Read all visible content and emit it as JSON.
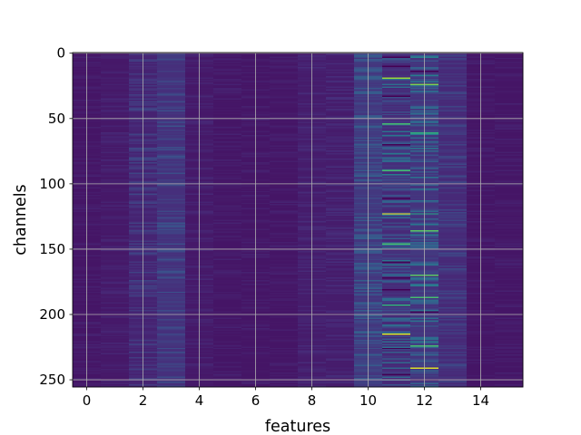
{
  "chart_data": {
    "type": "heatmap",
    "title": "",
    "xlabel": "features",
    "ylabel": "channels",
    "x_range": [
      -0.5,
      15.5
    ],
    "y_range": [
      255.5,
      -0.5
    ],
    "y_axis_inverted": true,
    "x_ticks": [
      0,
      2,
      4,
      6,
      8,
      10,
      12,
      14
    ],
    "y_ticks": [
      0,
      50,
      100,
      150,
      200,
      250
    ],
    "n_features": 16,
    "n_channels": 256,
    "grid": true,
    "colormap": "viridis",
    "legend": "none",
    "column_base_level": [
      0.06,
      0.07,
      0.1,
      0.14,
      0.07,
      0.06,
      0.06,
      0.06,
      0.08,
      0.08,
      0.16,
      0.12,
      0.15,
      0.12,
      0.06,
      0.06
    ],
    "column_variation": [
      0.04,
      0.05,
      0.12,
      0.12,
      0.05,
      0.04,
      0.04,
      0.04,
      0.05,
      0.06,
      0.16,
      0.3,
      0.28,
      0.1,
      0.04,
      0.04
    ],
    "bright_cells": [
      {
        "feature": 11,
        "channel": 123,
        "value": 1.0
      },
      {
        "feature": 11,
        "channel": 215,
        "value": 0.95
      },
      {
        "feature": 12,
        "channel": 241,
        "value": 0.95
      },
      {
        "feature": 11,
        "channel": 19,
        "value": 0.85
      },
      {
        "feature": 12,
        "channel": 24,
        "value": 0.8
      },
      {
        "feature": 11,
        "channel": 54,
        "value": 0.7
      },
      {
        "feature": 11,
        "channel": 90,
        "value": 0.7
      },
      {
        "feature": 11,
        "channel": 146,
        "value": 0.7
      },
      {
        "feature": 12,
        "channel": 136,
        "value": 0.75
      },
      {
        "feature": 12,
        "channel": 170,
        "value": 0.75
      },
      {
        "feature": 12,
        "channel": 187,
        "value": 0.7
      },
      {
        "feature": 12,
        "channel": 224,
        "value": 0.7
      },
      {
        "feature": 12,
        "channel": 61,
        "value": 0.65
      },
      {
        "feature": 11,
        "channel": 193,
        "value": 0.65
      },
      {
        "feature": 12,
        "channel": 123,
        "value": 0.6
      }
    ],
    "dark_cells": [
      {
        "feature": 11,
        "channel": 3
      },
      {
        "feature": 11,
        "channel": 10
      },
      {
        "feature": 11,
        "channel": 33
      },
      {
        "feature": 11,
        "channel": 70
      },
      {
        "feature": 11,
        "channel": 111
      },
      {
        "feature": 11,
        "channel": 160
      },
      {
        "feature": 11,
        "channel": 172
      },
      {
        "feature": 11,
        "channel": 181
      },
      {
        "feature": 11,
        "channel": 226
      },
      {
        "feature": 11,
        "channel": 246
      },
      {
        "feature": 12,
        "channel": 14
      },
      {
        "feature": 12,
        "channel": 198
      },
      {
        "feature": 12,
        "channel": 250
      }
    ],
    "colors": {
      "low": "#440154",
      "mid": "#21918c",
      "high": "#fde725",
      "grid": "#b0b0b0"
    }
  }
}
